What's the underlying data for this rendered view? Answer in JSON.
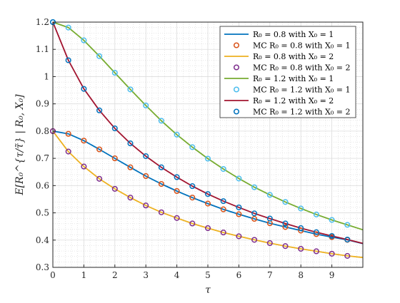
{
  "chart_data": {
    "type": "line",
    "xlabel": "τ",
    "ylabel": "E[R₀^{τ/τ̃} | R₀, X₀]",
    "xlim": [
      0,
      10
    ],
    "ylim": [
      0.3,
      1.2
    ],
    "xticks": [
      0,
      1,
      2,
      3,
      4,
      5,
      6,
      7,
      8,
      9
    ],
    "yticks": [
      0.3,
      0.4,
      0.5,
      0.6,
      0.7,
      0.8,
      0.9,
      1.0,
      1.1,
      1.2
    ],
    "xtick_labels": [
      "0",
      "1",
      "2",
      "3",
      "4",
      "5",
      "6",
      "7",
      "8",
      "9"
    ],
    "ytick_labels": [
      "0.3",
      "0.4",
      "0.5",
      "0.6",
      "0.7",
      "0.8",
      "0.9",
      "1",
      "1.1",
      "1.2"
    ],
    "grid": true,
    "minor_grid": true,
    "legend_position": "top-right",
    "series": [
      {
        "name": "R₀ = 0.8 with X₀ = 1",
        "kind": "line",
        "color": "#0072BD",
        "x": [
          0,
          0.5,
          1,
          1.5,
          2,
          2.5,
          3,
          3.5,
          4,
          4.5,
          5,
          5.5,
          6,
          6.5,
          7,
          7.5,
          8,
          8.5,
          9,
          9.5,
          10
        ],
        "y": [
          0.8,
          0.79,
          0.765,
          0.733,
          0.7,
          0.667,
          0.635,
          0.606,
          0.58,
          0.556,
          0.534,
          0.513,
          0.495,
          0.478,
          0.462,
          0.448,
          0.435,
          0.422,
          0.411,
          0.401,
          0.387
        ]
      },
      {
        "name": "MC R₀ = 0.8 with X₀ = 1",
        "kind": "marker",
        "color": "#D95319",
        "x": [
          0,
          0.5,
          1,
          1.5,
          2,
          2.5,
          3,
          3.5,
          4,
          4.5,
          5,
          5.5,
          6,
          6.5,
          7,
          7.5,
          8,
          8.5,
          9,
          9.5
        ],
        "y": [
          0.8,
          0.79,
          0.765,
          0.733,
          0.7,
          0.667,
          0.635,
          0.606,
          0.58,
          0.556,
          0.534,
          0.513,
          0.495,
          0.478,
          0.462,
          0.448,
          0.435,
          0.422,
          0.411,
          0.401
        ]
      },
      {
        "name": "R₀ = 0.8 with X₀ = 2",
        "kind": "line",
        "color": "#EDB120",
        "x": [
          0,
          0.5,
          1,
          1.5,
          2,
          2.5,
          3,
          3.5,
          4,
          4.5,
          5,
          5.5,
          6,
          6.5,
          7,
          7.5,
          8,
          8.5,
          9,
          9.5,
          10
        ],
        "y": [
          0.8,
          0.725,
          0.67,
          0.625,
          0.588,
          0.556,
          0.527,
          0.502,
          0.481,
          0.461,
          0.444,
          0.428,
          0.414,
          0.401,
          0.389,
          0.378,
          0.368,
          0.359,
          0.35,
          0.342,
          0.336
        ]
      },
      {
        "name": "MC R₀ = 0.8 with X₀ = 2",
        "kind": "marker",
        "color": "#7E2F8E",
        "x": [
          0,
          0.5,
          1,
          1.5,
          2,
          2.5,
          3,
          3.5,
          4,
          4.5,
          5,
          5.5,
          6,
          6.5,
          7,
          7.5,
          8,
          8.5,
          9,
          9.5
        ],
        "y": [
          0.8,
          0.725,
          0.67,
          0.625,
          0.588,
          0.556,
          0.527,
          0.502,
          0.481,
          0.461,
          0.444,
          0.428,
          0.414,
          0.401,
          0.389,
          0.378,
          0.368,
          0.359,
          0.35,
          0.342
        ]
      },
      {
        "name": "R₀ = 1.2 with X₀ = 1",
        "kind": "line",
        "color": "#77AC30",
        "x": [
          0,
          0.5,
          1,
          1.5,
          2,
          2.5,
          3,
          3.5,
          4,
          4.5,
          5,
          5.5,
          6,
          6.5,
          7,
          7.5,
          8,
          8.5,
          9,
          9.5,
          10
        ],
        "y": [
          1.2,
          1.18,
          1.133,
          1.075,
          1.014,
          0.953,
          0.894,
          0.838,
          0.787,
          0.741,
          0.699,
          0.661,
          0.626,
          0.594,
          0.566,
          0.54,
          0.516,
          0.494,
          0.474,
          0.456,
          0.438
        ]
      },
      {
        "name": "MC R₀ = 1.2 with X₀ = 1",
        "kind": "marker",
        "color": "#4DBEEE",
        "x": [
          0,
          0.5,
          1,
          1.5,
          2,
          2.5,
          3,
          3.5,
          4,
          4.5,
          5,
          5.5,
          6,
          6.5,
          7,
          7.5,
          8,
          8.5,
          9,
          9.5
        ],
        "y": [
          1.2,
          1.18,
          1.133,
          1.075,
          1.014,
          0.953,
          0.894,
          0.838,
          0.787,
          0.741,
          0.699,
          0.661,
          0.626,
          0.594,
          0.566,
          0.54,
          0.516,
          0.494,
          0.474,
          0.456
        ]
      },
      {
        "name": "R₀ = 1.2 with X₀ = 2",
        "kind": "line",
        "color": "#A2142F",
        "x": [
          0,
          0.5,
          1,
          1.5,
          2,
          2.5,
          3,
          3.5,
          4,
          4.5,
          5,
          5.5,
          6,
          6.5,
          7,
          7.5,
          8,
          8.5,
          9,
          9.5,
          10
        ],
        "y": [
          1.2,
          1.06,
          0.955,
          0.876,
          0.81,
          0.755,
          0.708,
          0.667,
          0.631,
          0.598,
          0.569,
          0.543,
          0.52,
          0.498,
          0.479,
          0.461,
          0.444,
          0.429,
          0.415,
          0.402,
          0.388
        ]
      },
      {
        "name": "MC R₀ = 1.2 with X₀ = 2",
        "kind": "marker",
        "color": "#0072BD",
        "x": [
          0,
          0.5,
          1,
          1.5,
          2,
          2.5,
          3,
          3.5,
          4,
          4.5,
          5,
          5.5,
          6,
          6.5,
          7,
          7.5,
          8,
          8.5,
          9,
          9.5
        ],
        "y": [
          1.2,
          1.06,
          0.955,
          0.876,
          0.81,
          0.755,
          0.708,
          0.667,
          0.631,
          0.598,
          0.569,
          0.543,
          0.52,
          0.498,
          0.479,
          0.461,
          0.444,
          0.429,
          0.415,
          0.402
        ]
      }
    ]
  }
}
